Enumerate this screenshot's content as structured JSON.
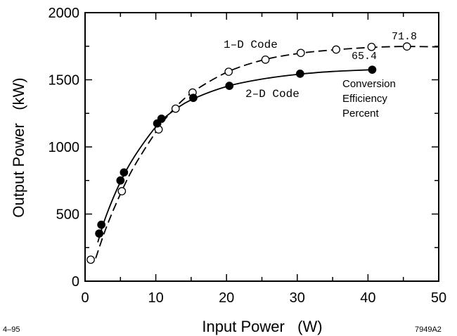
{
  "chart_data": {
    "type": "scatter",
    "title": "",
    "xlabel": "Input Power   (W)",
    "ylabel": "Output Power   (kW)",
    "xlim": [
      0,
      50
    ],
    "ylim": [
      0,
      2000
    ],
    "x_ticks": [
      0,
      10,
      20,
      30,
      40,
      50
    ],
    "y_ticks": [
      0,
      500,
      1000,
      1500,
      2000
    ],
    "grid": false,
    "series": [
      {
        "name": "1-D Code",
        "marker": "open-circle",
        "line": "dashed",
        "points": [
          [
            0.8,
            160
          ],
          [
            5.2,
            670
          ],
          [
            10.4,
            1130
          ],
          [
            12.8,
            1285
          ],
          [
            15.2,
            1405
          ],
          [
            20.3,
            1560
          ],
          [
            25.5,
            1650
          ],
          [
            30.5,
            1700
          ],
          [
            35.5,
            1725
          ],
          [
            40.5,
            1745
          ],
          [
            45.5,
            1748
          ]
        ],
        "curve": [
          [
            1.5,
            170
          ],
          [
            3,
            400
          ],
          [
            5,
            650
          ],
          [
            7,
            860
          ],
          [
            10,
            1110
          ],
          [
            12,
            1250
          ],
          [
            15,
            1400
          ],
          [
            20,
            1555
          ],
          [
            25,
            1645
          ],
          [
            30,
            1695
          ],
          [
            35,
            1722
          ],
          [
            40,
            1740
          ],
          [
            45,
            1748
          ],
          [
            50,
            1745
          ]
        ]
      },
      {
        "name": "2-D Code",
        "marker": "filled-circle",
        "line": "solid",
        "points": [
          [
            2.0,
            355
          ],
          [
            2.3,
            420
          ],
          [
            5.0,
            750
          ],
          [
            5.5,
            810
          ],
          [
            10.2,
            1175
          ],
          [
            10.8,
            1210
          ],
          [
            15.3,
            1365
          ],
          [
            20.4,
            1455
          ],
          [
            30.4,
            1545
          ],
          [
            40.6,
            1575
          ]
        ],
        "curve": [
          [
            1.8,
            290
          ],
          [
            3,
            490
          ],
          [
            5,
            740
          ],
          [
            7,
            930
          ],
          [
            10,
            1150
          ],
          [
            12,
            1250
          ],
          [
            15,
            1350
          ],
          [
            20,
            1450
          ],
          [
            25,
            1505
          ],
          [
            30,
            1540
          ],
          [
            35,
            1562
          ],
          [
            40.6,
            1575
          ]
        ]
      }
    ],
    "annotations": {
      "series_1d": "1–D Code",
      "series_2d": "2–D Code",
      "eff_1d": "71.8",
      "eff_2d": "65.4",
      "legend_line1": "Conversion",
      "legend_line2": "Efficiency",
      "legend_line3": "Percent",
      "corner_left": "4–95",
      "corner_right": "7949A2"
    }
  }
}
